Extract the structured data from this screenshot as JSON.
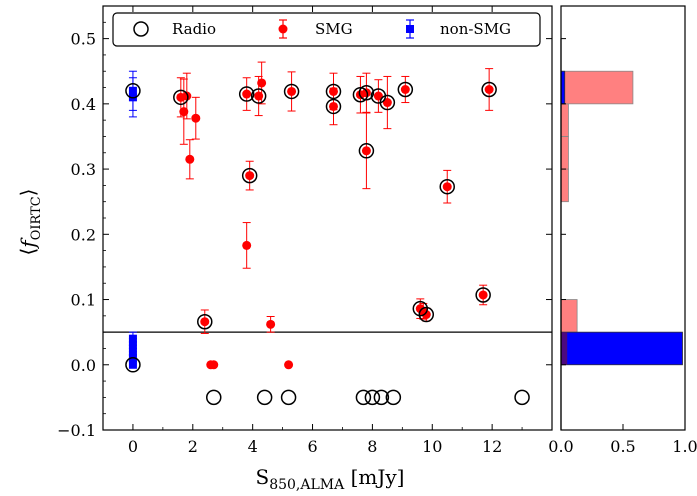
{
  "chart_data": [
    {
      "type": "scatter",
      "title": "",
      "xlabel": "S_850,ALMA [mJy]",
      "ylabel": "⟨f_OIRTC⟩",
      "xlim": [
        -1,
        14
      ],
      "ylim": [
        -0.1,
        0.55
      ],
      "x_ticks": [
        0,
        2,
        4,
        6,
        8,
        10,
        12
      ],
      "y_ticks": [
        -0.1,
        0.0,
        0.1,
        0.2,
        0.3,
        0.4,
        0.5
      ],
      "x_tick_labels": [
        "0",
        "2",
        "4",
        "6",
        "8",
        "10",
        "12"
      ],
      "y_tick_labels": [
        "−0.1",
        "0.0",
        "0.1",
        "0.2",
        "0.3",
        "0.4",
        "0.5"
      ],
      "threshold_line_y": 0.05,
      "grid": false,
      "legend_position": "top",
      "legend": [
        {
          "label": "Radio",
          "marker": "open-circle",
          "color": "#000000"
        },
        {
          "label": "SMG",
          "marker": "filled-circle",
          "color": "#ff0000"
        },
        {
          "label": "non-SMG",
          "marker": "filled-square",
          "color": "#0000ff"
        }
      ],
      "series": [
        {
          "name": "SMG",
          "color": "#ff0000",
          "points": [
            {
              "x": 1.6,
              "y": 0.41,
              "err": 0.03
            },
            {
              "x": 1.7,
              "y": 0.388,
              "err": 0.05
            },
            {
              "x": 1.8,
              "y": 0.412,
              "err": 0.035
            },
            {
              "x": 1.9,
              "y": 0.315,
              "err": 0.03
            },
            {
              "x": 2.1,
              "y": 0.378,
              "err": 0.032
            },
            {
              "x": 2.4,
              "y": 0.066,
              "err": 0.018
            },
            {
              "x": 3.8,
              "y": 0.183,
              "err": 0.035
            },
            {
              "x": 3.8,
              "y": 0.415,
              "err": 0.025
            },
            {
              "x": 3.9,
              "y": 0.29,
              "err": 0.022
            },
            {
              "x": 4.2,
              "y": 0.412,
              "err": 0.03
            },
            {
              "x": 4.3,
              "y": 0.432,
              "err": 0.032
            },
            {
              "x": 4.6,
              "y": 0.062,
              "err": 0.012
            },
            {
              "x": 5.3,
              "y": 0.419,
              "err": 0.03
            },
            {
              "x": 6.7,
              "y": 0.419,
              "err": 0.028
            },
            {
              "x": 6.7,
              "y": 0.396,
              "err": 0.028
            },
            {
              "x": 7.6,
              "y": 0.414,
              "err": 0.028
            },
            {
              "x": 7.8,
              "y": 0.417,
              "err": 0.03
            },
            {
              "x": 7.8,
              "y": 0.328,
              "err": 0.058
            },
            {
              "x": 8.2,
              "y": 0.412,
              "err": 0.025
            },
            {
              "x": 8.5,
              "y": 0.402,
              "err": 0.04
            },
            {
              "x": 9.1,
              "y": 0.422,
              "err": 0.02
            },
            {
              "x": 9.6,
              "y": 0.086,
              "err": 0.015
            },
            {
              "x": 9.7,
              "y": 0.082,
              "err": 0.012
            },
            {
              "x": 9.8,
              "y": 0.077,
              "err": 0.01
            },
            {
              "x": 10.5,
              "y": 0.273,
              "err": 0.025
            },
            {
              "x": 11.7,
              "y": 0.107,
              "err": 0.015
            },
            {
              "x": 11.9,
              "y": 0.422,
              "err": 0.032
            },
            {
              "x": 2.6,
              "y": 0.0,
              "err": 0
            },
            {
              "x": 2.7,
              "y": 0.0,
              "err": 0
            },
            {
              "x": 5.2,
              "y": 0.0,
              "err": 0
            }
          ]
        },
        {
          "name": "non-SMG",
          "color": "#0000ff",
          "points": [
            {
              "x": 0.0,
              "y": 0.42,
              "err": 0.03
            },
            {
              "x": 0.0,
              "y": 0.41,
              "err": 0.03
            },
            {
              "x": 0.0,
              "y": 0.04,
              "err": 0.01
            },
            {
              "x": 0.0,
              "y": 0.03,
              "err": 0.01
            },
            {
              "x": 0.0,
              "y": 0.02,
              "err": 0.01
            },
            {
              "x": 0.0,
              "y": 0.01,
              "err": 0.005
            },
            {
              "x": 0.0,
              "y": 0.0,
              "err": 0
            }
          ]
        },
        {
          "name": "Radio",
          "color": "#000000",
          "points": [
            {
              "x": 0.0,
              "y": 0.42
            },
            {
              "x": 0.0,
              "y": 0.0
            },
            {
              "x": 1.6,
              "y": 0.41
            },
            {
              "x": 2.4,
              "y": 0.066
            },
            {
              "x": 3.8,
              "y": 0.415
            },
            {
              "x": 3.9,
              "y": 0.29
            },
            {
              "x": 4.2,
              "y": 0.412
            },
            {
              "x": 5.3,
              "y": 0.419
            },
            {
              "x": 6.7,
              "y": 0.419
            },
            {
              "x": 6.7,
              "y": 0.396
            },
            {
              "x": 7.6,
              "y": 0.414
            },
            {
              "x": 7.8,
              "y": 0.417
            },
            {
              "x": 7.8,
              "y": 0.328
            },
            {
              "x": 8.2,
              "y": 0.412
            },
            {
              "x": 8.5,
              "y": 0.402
            },
            {
              "x": 9.1,
              "y": 0.422
            },
            {
              "x": 9.6,
              "y": 0.086
            },
            {
              "x": 9.8,
              "y": 0.077
            },
            {
              "x": 10.5,
              "y": 0.273
            },
            {
              "x": 11.7,
              "y": 0.107
            },
            {
              "x": 11.9,
              "y": 0.422
            },
            {
              "x": 2.7,
              "y": -0.05
            },
            {
              "x": 4.4,
              "y": -0.05
            },
            {
              "x": 5.2,
              "y": -0.05
            },
            {
              "x": 7.7,
              "y": -0.05
            },
            {
              "x": 8.0,
              "y": -0.05
            },
            {
              "x": 8.3,
              "y": -0.05
            },
            {
              "x": 8.7,
              "y": -0.05
            },
            {
              "x": 13.0,
              "y": -0.05
            }
          ]
        }
      ]
    },
    {
      "type": "bar",
      "orientation": "horizontal",
      "title": "",
      "xlim": [
        0,
        1.0
      ],
      "ylim": [
        -0.1,
        0.55
      ],
      "x_ticks": [
        0,
        0.5,
        1.0
      ],
      "x_tick_labels": [
        "0.0",
        "0.5",
        "1.0"
      ],
      "series": [
        {
          "name": "SMG",
          "color": "#ff8080",
          "bins": [
            {
              "y0": 0.0,
              "y1": 0.05,
              "value": 0.0
            },
            {
              "y0": 0.05,
              "y1": 0.1,
              "value": 0.13
            },
            {
              "y0": 0.1,
              "y1": 0.15,
              "value": 0.0
            },
            {
              "y0": 0.15,
              "y1": 0.2,
              "value": 0.0
            },
            {
              "y0": 0.2,
              "y1": 0.25,
              "value": 0.0
            },
            {
              "y0": 0.25,
              "y1": 0.3,
              "value": 0.06
            },
            {
              "y0": 0.3,
              "y1": 0.35,
              "value": 0.06
            },
            {
              "y0": 0.35,
              "y1": 0.4,
              "value": 0.06
            },
            {
              "y0": 0.4,
              "y1": 0.45,
              "value": 0.58
            },
            {
              "y0": 0.45,
              "y1": 0.5,
              "value": 0.0
            }
          ]
        },
        {
          "name": "non-SMG",
          "color": "#0000ff",
          "bins": [
            {
              "y0": 0.0,
              "y1": 0.05,
              "value": 0.98
            },
            {
              "y0": 0.4,
              "y1": 0.45,
              "value": 0.03
            }
          ]
        }
      ]
    }
  ]
}
